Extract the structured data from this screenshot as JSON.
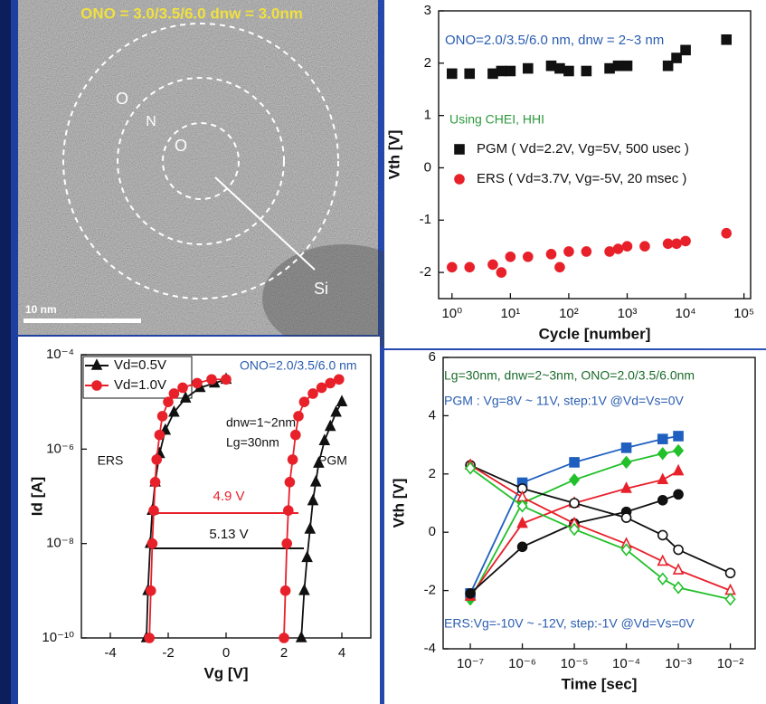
{
  "image": {
    "title": "ONO = 3.0/3.5/6.0   dnw = 3.0nm",
    "labels": [
      "O",
      "N",
      "O",
      "Si"
    ],
    "scale_bar": "10 nm"
  },
  "chart_data": [
    {
      "type": "scatter",
      "xscale": "log",
      "xlabel": "Cycle [number]",
      "ylabel": "Vth [V]",
      "xlim": [
        0.59,
        130000
      ],
      "ylim": [
        -2.5,
        3
      ],
      "xticks": [
        {
          "value": 1,
          "label": "10⁰"
        },
        {
          "value": 10,
          "label": "10¹"
        },
        {
          "value": 100,
          "label": "10²"
        },
        {
          "value": 1000,
          "label": "10³"
        },
        {
          "value": 10000,
          "label": "10⁴"
        },
        {
          "value": 100000,
          "label": "10⁵"
        }
      ],
      "yticks": [
        3,
        2,
        1,
        0,
        -1,
        -2
      ],
      "annotations": [
        {
          "text": "ONO=2.0/3.5/6.0 nm,  dnw = 2~3 nm",
          "color": "#2a5db0"
        },
        {
          "text": "Using CHEI, HHI",
          "color": "#2e9a3e"
        }
      ],
      "series": [
        {
          "name": "PGM ( Vd=2.2V, Vg=5V, 500 usec )",
          "color": "#111111",
          "marker": "square",
          "filled": true,
          "x": [
            1,
            2,
            5,
            7,
            10,
            20,
            50,
            70,
            100,
            200,
            500,
            700,
            1000,
            5000,
            7000,
            10000,
            50000
          ],
          "values": [
            1.8,
            1.8,
            1.8,
            1.85,
            1.85,
            1.9,
            1.95,
            1.9,
            1.85,
            1.85,
            1.9,
            1.95,
            1.95,
            1.95,
            2.1,
            2.25,
            2.45
          ]
        },
        {
          "name": "ERS ( Vd=3.7V, Vg=-5V, 20 msec )",
          "color": "#e8202a",
          "marker": "circle",
          "filled": true,
          "x": [
            1,
            2,
            5,
            7,
            10,
            20,
            50,
            70,
            100,
            200,
            500,
            700,
            1000,
            2000,
            5000,
            7000,
            10000,
            50000
          ],
          "values": [
            -1.9,
            -1.9,
            -1.85,
            -2.0,
            -1.7,
            -1.7,
            -1.65,
            -1.9,
            -1.6,
            -1.6,
            -1.6,
            -1.55,
            -1.5,
            -1.5,
            -1.45,
            -1.45,
            -1.4,
            -1.25
          ]
        }
      ]
    },
    {
      "type": "line",
      "yscale": "log",
      "xlabel": "Vg [V]",
      "ylabel": "Id [A]",
      "xlim": [
        -5,
        5
      ],
      "ylim": [
        1e-10,
        0.0001
      ],
      "xticks": [
        -4,
        -2,
        0,
        2,
        4
      ],
      "yticks": [
        {
          "value": 0.0001,
          "label": "10⁻⁴"
        },
        {
          "value": 1e-06,
          "label": "10⁻⁶"
        },
        {
          "value": 1e-08,
          "label": "10⁻⁸"
        },
        {
          "value": 1e-10,
          "label": "10⁻¹⁰"
        }
      ],
      "annotations": [
        {
          "text": "ONO=2.0/3.5/6.0 nm",
          "color": "#2a5db0"
        },
        {
          "text": "dnw=1~2nm",
          "color": "#111111"
        },
        {
          "text": "Lg=30nm",
          "color": "#111111"
        },
        {
          "text": "ERS",
          "color": "#111111"
        },
        {
          "text": "PGM",
          "color": "#111111"
        },
        {
          "text": "4.9 V",
          "color": "#e8202a"
        },
        {
          "text": "5.13 V",
          "color": "#111111"
        }
      ],
      "series": [
        {
          "name": "Vd=0.5V",
          "color": "#111111",
          "marker": "triangle",
          "filled": true,
          "x": [
            -2.75,
            -2.7,
            -2.62,
            -2.55,
            -2.45,
            -2.3,
            -2.1,
            -1.8,
            -1.4,
            -0.9,
            -0.4,
            0,
            null,
            2.6,
            2.7,
            2.8,
            2.9,
            3.0,
            3.1,
            3.2,
            3.4,
            3.6,
            3.8,
            4.0
          ],
          "values": [
            1e-10,
            1e-09,
            1e-08,
            5e-08,
            2e-07,
            8e-07,
            2.5e-06,
            6e-06,
            1.2e-05,
            2e-05,
            2.5e-05,
            3e-05,
            null,
            1e-10,
            1e-09,
            5e-09,
            2e-08,
            8e-08,
            2e-07,
            5e-07,
            1.5e-06,
            3e-06,
            6e-06,
            1e-05
          ]
        },
        {
          "name": "Vd=1.0V",
          "color": "#e8202a",
          "marker": "circle",
          "filled": true,
          "x": [
            -2.65,
            -2.6,
            -2.55,
            -2.5,
            -2.45,
            -2.4,
            -2.3,
            -2.2,
            -2.0,
            -1.8,
            -1.5,
            -1.0,
            -0.5,
            0,
            null,
            2.0,
            2.05,
            2.1,
            2.15,
            2.2,
            2.3,
            2.4,
            2.5,
            2.7,
            3.0,
            3.3,
            3.6,
            3.9
          ],
          "values": [
            1e-10,
            1e-09,
            1e-08,
            5e-08,
            2e-07,
            6e-07,
            2e-06,
            5e-06,
            1e-05,
            1.5e-05,
            2e-05,
            2.5e-05,
            3e-05,
            3e-05,
            null,
            1e-10,
            1e-09,
            1e-08,
            5e-08,
            2e-07,
            6e-07,
            2e-06,
            5e-06,
            1e-05,
            1.5e-05,
            2e-05,
            2.5e-05,
            3e-05
          ]
        }
      ]
    },
    {
      "type": "line",
      "xscale": "log",
      "xlabel": "Time [sec]",
      "ylabel": "Vth [V]",
      "xlim": [
        3e-08,
        0.03
      ],
      "ylim": [
        -4,
        6
      ],
      "xticks": [
        {
          "value": 1e-07,
          "label": "10⁻⁷"
        },
        {
          "value": 1e-06,
          "label": "10⁻⁶"
        },
        {
          "value": 1e-05,
          "label": "10⁻⁵"
        },
        {
          "value": 0.0001,
          "label": "10⁻⁴"
        },
        {
          "value": 0.001,
          "label": "10⁻³"
        },
        {
          "value": 0.01,
          "label": "10⁻²"
        }
      ],
      "yticks": [
        6,
        4,
        2,
        0,
        -2,
        -4
      ],
      "annotations": [
        {
          "text": "Lg=30nm, dnw=2~3nm, ONO=2.0/3.5/6.0nm",
          "color": "#1a6b2a"
        },
        {
          "text": "PGM : Vg=8V ~ 11V, step:1V @Vd=Vs=0V",
          "color": "#2a5db0"
        },
        {
          "text": "ERS:Vg=-10V ~ -12V, step:-1V @Vd=Vs=0V",
          "color": "#2a5db0"
        }
      ],
      "series": [
        {
          "color": "#1f5fbf",
          "marker": "square",
          "filled": true,
          "x": [
            1e-07,
            1e-06,
            1e-05,
            0.0001,
            0.0005,
            0.001
          ],
          "values": [
            -2.1,
            1.7,
            2.4,
            2.9,
            3.2,
            3.3
          ]
        },
        {
          "color": "#22c02a",
          "marker": "diamond",
          "filled": true,
          "x": [
            1e-07,
            1e-06,
            1e-05,
            0.0001,
            0.0005,
            0.001
          ],
          "values": [
            -2.3,
            1.0,
            1.8,
            2.4,
            2.7,
            2.8
          ]
        },
        {
          "color": "#e8202a",
          "marker": "triangle",
          "filled": true,
          "x": [
            1e-07,
            1e-06,
            1e-05,
            0.0001,
            0.0005,
            0.001
          ],
          "values": [
            -2.2,
            0.3,
            1.0,
            1.5,
            1.8,
            2.1
          ]
        },
        {
          "color": "#111111",
          "marker": "circle",
          "filled": true,
          "x": [
            1e-07,
            1e-06,
            1e-05,
            0.0001,
            0.0005,
            0.001
          ],
          "values": [
            -2.1,
            -0.5,
            0.3,
            0.7,
            1.1,
            1.3
          ]
        },
        {
          "color": "#111111",
          "marker": "circle",
          "filled": false,
          "x": [
            1e-07,
            1e-06,
            1e-05,
            0.0001,
            0.0005,
            0.001,
            0.01
          ],
          "values": [
            2.3,
            1.5,
            1.0,
            0.5,
            -0.1,
            -0.6,
            -1.4
          ]
        },
        {
          "color": "#e8202a",
          "marker": "triangle",
          "filled": false,
          "x": [
            1e-07,
            1e-06,
            1e-05,
            0.0001,
            0.0005,
            0.001,
            0.01
          ],
          "values": [
            2.3,
            1.2,
            0.3,
            -0.4,
            -1.0,
            -1.3,
            -2.0
          ]
        },
        {
          "color": "#22c02a",
          "marker": "diamond",
          "filled": false,
          "x": [
            1e-07,
            1e-06,
            1e-05,
            0.0001,
            0.0005,
            0.001,
            0.01
          ],
          "values": [
            2.2,
            0.9,
            0.1,
            -0.6,
            -1.6,
            -1.9,
            -2.3
          ]
        }
      ]
    }
  ]
}
